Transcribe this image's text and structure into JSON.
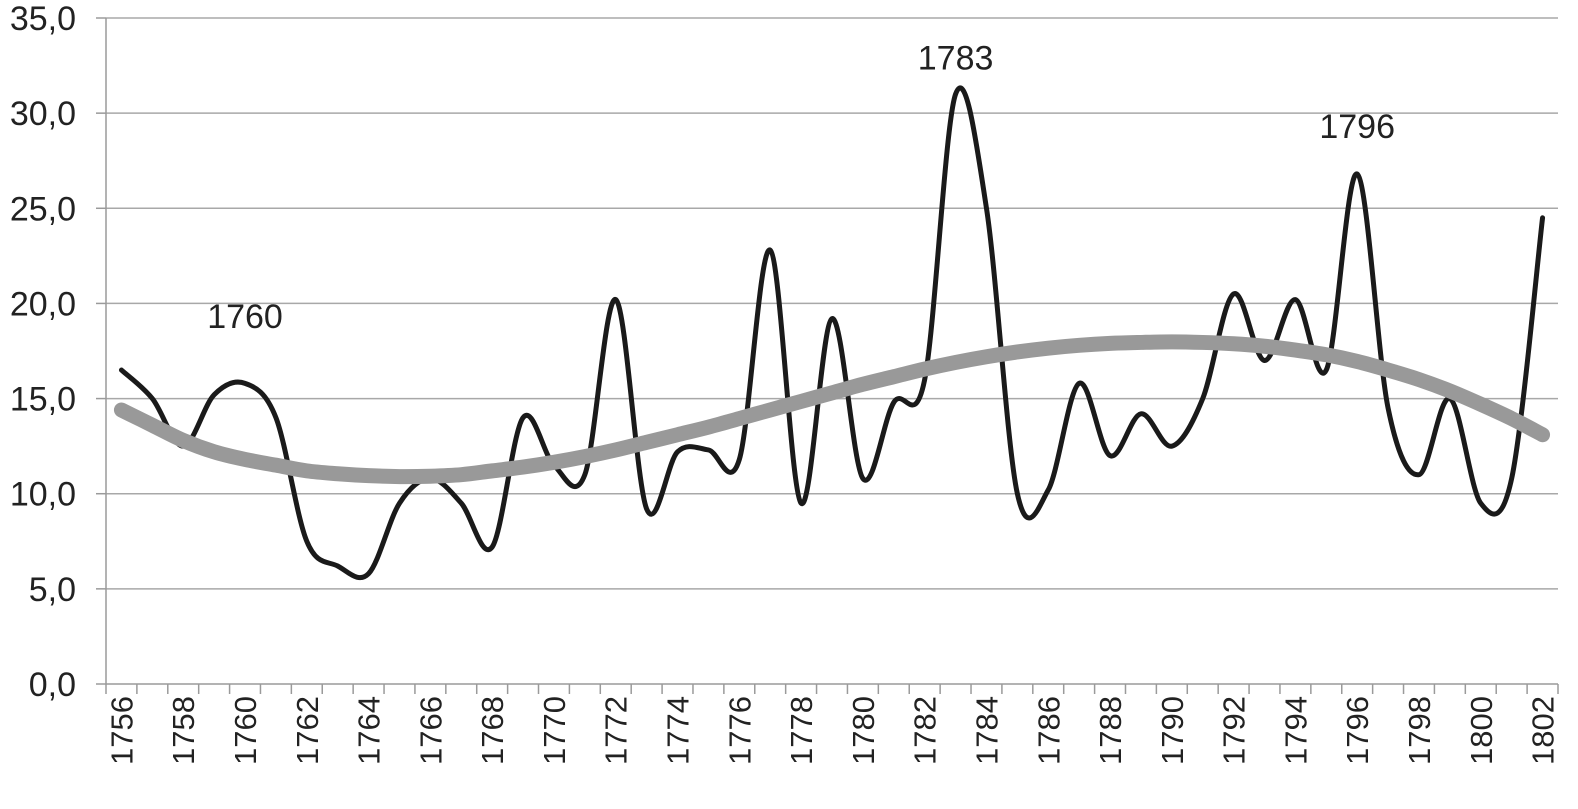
{
  "chart_data": {
    "type": "line",
    "x": [
      1756,
      1757,
      1758,
      1759,
      1760,
      1761,
      1762,
      1763,
      1764,
      1765,
      1766,
      1767,
      1768,
      1769,
      1770,
      1771,
      1772,
      1773,
      1774,
      1775,
      1776,
      1777,
      1778,
      1779,
      1780,
      1781,
      1782,
      1783,
      1784,
      1785,
      1786,
      1787,
      1788,
      1789,
      1790,
      1791,
      1792,
      1793,
      1794,
      1795,
      1796,
      1797,
      1798,
      1799,
      1800,
      1801,
      1802
    ],
    "xlim": [
      1755.5,
      1802.5
    ],
    "ylim": [
      0,
      35
    ],
    "y_ticks": [
      "0,0",
      "5,0",
      "10,0",
      "15,0",
      "20,0",
      "25,0",
      "30,0",
      "35,0"
    ],
    "y_tick_values": [
      0,
      5,
      10,
      15,
      20,
      25,
      30,
      35
    ],
    "x_ticks": [
      1756,
      1758,
      1760,
      1762,
      1764,
      1766,
      1768,
      1770,
      1772,
      1774,
      1776,
      1778,
      1780,
      1782,
      1784,
      1786,
      1788,
      1790,
      1792,
      1794,
      1796,
      1798,
      1800,
      1802
    ],
    "grid": true,
    "legend": "none",
    "series": [
      {
        "color": "#1a1a1a",
        "values": [
          16.5,
          15.0,
          12.5,
          15.2,
          15.8,
          14.0,
          7.5,
          6.2,
          5.8,
          9.5,
          10.8,
          9.5,
          7.2,
          14.0,
          11.5,
          11.0,
          20.2,
          9.2,
          12.2,
          12.3,
          11.8,
          22.8,
          9.5,
          19.2,
          10.8,
          14.8,
          16.0,
          31.0,
          25.0,
          10.0,
          10.2,
          15.8,
          12.0,
          14.2,
          12.5,
          15.0,
          20.5,
          17.0,
          20.2,
          16.5,
          26.8,
          14.5,
          11.0,
          15.0,
          9.5,
          10.8,
          24.5
        ]
      },
      {
        "color": "#999999",
        "values": [
          14.4,
          13.6,
          12.8,
          12.2,
          11.8,
          11.5,
          11.2,
          11.05,
          10.95,
          10.9,
          10.92,
          11.0,
          11.2,
          11.4,
          11.65,
          11.95,
          12.3,
          12.7,
          13.1,
          13.5,
          13.95,
          14.4,
          14.85,
          15.3,
          15.75,
          16.15,
          16.55,
          16.9,
          17.2,
          17.45,
          17.65,
          17.8,
          17.9,
          17.95,
          17.98,
          17.95,
          17.88,
          17.75,
          17.55,
          17.3,
          16.95,
          16.5,
          16.0,
          15.4,
          14.7,
          13.95,
          13.1
        ]
      }
    ],
    "annotations": [
      {
        "text": "1760",
        "x": 1760,
        "y": 18.7
      },
      {
        "text": "1783",
        "x": 1783,
        "y": 32.3
      },
      {
        "text": "1796",
        "x": 1796,
        "y": 28.7
      }
    ]
  }
}
